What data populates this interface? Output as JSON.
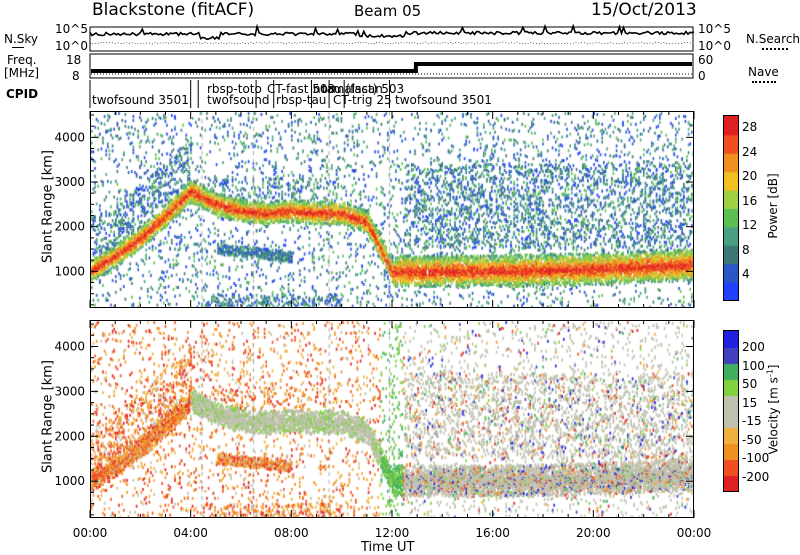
{
  "header": {
    "station": "Blackstone (fitACF)",
    "beam": "Beam 05",
    "date": "15/Oct/2013"
  },
  "top_panel": {
    "noise_label": "N.Sky",
    "noise_right_label": "N.Search",
    "noise_ticks": [
      "10^5",
      "10^0"
    ],
    "freq_label_1": "Freq.",
    "freq_label_2": "[MHz]",
    "freq_ticks": [
      "18",
      "8"
    ],
    "nave_label": "Nave",
    "nave_ticks": [
      "60",
      "0"
    ],
    "cpid_label": "CPID"
  },
  "cpid_segments": [
    {
      "label": "twofsound 3501",
      "start_h": 0.0
    },
    {
      "label": "rbsp-toto",
      "start_h": 4.0
    },
    {
      "label": "twofsound",
      "start_h": 4.3
    },
    {
      "label": "CT-fast 503",
      "start_h": 6.6
    },
    {
      "label": "rbsp-tau",
      "start_h": 7.3
    },
    {
      "label": "normalscan",
      "start_h": 8.8
    },
    {
      "label": "tau (fast) 503",
      "start_h": 10.1
    },
    {
      "label": "CT-trig 25",
      "start_h": 9.5
    },
    {
      "label": "twofsound 3501",
      "start_h": 11.9
    }
  ],
  "colors": {
    "power_scale": [
      "#2040ff",
      "#2858c8",
      "#3c7878",
      "#48a080",
      "#5cc050",
      "#a0d040",
      "#f0c020",
      "#f09020",
      "#f05020",
      "#e02020"
    ],
    "velocity_scale": [
      "#e02020",
      "#f05020",
      "#f09020",
      "#f0b040",
      "#c0c0b0",
      "#c0c0b0",
      "#80d040",
      "#40b060",
      "#4040c0",
      "#2020e0"
    ]
  },
  "chart_data": [
    {
      "type": "heatmap",
      "title": "Power",
      "ylabel": "Slant Range [km]",
      "xlabel": "Time UT",
      "x_ticks": [
        "00:00",
        "04:00",
        "08:00",
        "12:00",
        "16:00",
        "20:00",
        "00:00"
      ],
      "xlim_hours": [
        0,
        24
      ],
      "y_ticks": [
        "1000",
        "2000",
        "3000",
        "4000"
      ],
      "ylim": [
        180,
        4590
      ],
      "colorbar": {
        "label": "Power [dB]",
        "ticks": [
          "4",
          "8",
          "12",
          "16",
          "20",
          "24",
          "28"
        ],
        "range": [
          0,
          30
        ]
      },
      "main_echo_band": [
        {
          "h": 0.0,
          "km": 1000
        },
        {
          "h": 1.0,
          "km": 1350
        },
        {
          "h": 2.0,
          "km": 1750
        },
        {
          "h": 3.0,
          "km": 2250
        },
        {
          "h": 4.0,
          "km": 2800
        },
        {
          "h": 5.0,
          "km": 2500
        },
        {
          "h": 6.0,
          "km": 2350
        },
        {
          "h": 7.0,
          "km": 2300
        },
        {
          "h": 8.0,
          "km": 2350
        },
        {
          "h": 9.0,
          "km": 2300
        },
        {
          "h": 10.0,
          "km": 2300
        },
        {
          "h": 11.0,
          "km": 2100
        },
        {
          "h": 12.0,
          "km": 1000
        },
        {
          "h": 13.0,
          "km": 1000
        },
        {
          "h": 16.0,
          "km": 1000
        },
        {
          "h": 20.0,
          "km": 1050
        },
        {
          "h": 24.0,
          "km": 1150
        }
      ]
    },
    {
      "type": "heatmap",
      "title": "Velocity",
      "ylabel": "Slant Range [km]",
      "xlabel": "Time UT",
      "x_ticks": [
        "00:00",
        "04:00",
        "08:00",
        "12:00",
        "16:00",
        "20:00",
        "00:00"
      ],
      "xlim_hours": [
        0,
        24
      ],
      "y_ticks": [
        "1000",
        "2000",
        "3000",
        "4000"
      ],
      "ylim": [
        180,
        4590
      ],
      "colorbar": {
        "label": "Velocity [m s^-1]",
        "ticks": [
          "200",
          "100",
          "50",
          "15",
          "-15",
          "-50",
          "-100",
          "-200"
        ],
        "range": [
          -250,
          250
        ]
      }
    }
  ]
}
